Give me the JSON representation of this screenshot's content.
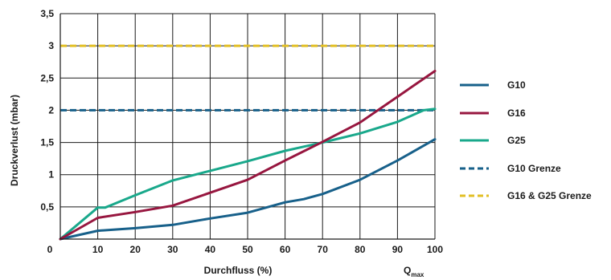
{
  "chart_data": {
    "type": "line",
    "xlabel": "Durchfluss (%)",
    "ylabel": "Druckverlust (mbar)",
    "x_extra_label": {
      "main": "Q",
      "sub": "max"
    },
    "xlim": [
      0,
      100
    ],
    "ylim": [
      0,
      3.5
    ],
    "x_ticks": [
      0,
      10,
      20,
      30,
      40,
      50,
      60,
      70,
      80,
      90,
      100
    ],
    "x_tick_labels": [
      "0",
      "10",
      "20",
      "30",
      "40",
      "50",
      "60",
      "70",
      "80",
      "90",
      "100"
    ],
    "y_ticks": [
      0.5,
      1,
      1.5,
      2,
      2.5,
      3,
      3.5
    ],
    "y_tick_labels": [
      "0,5",
      "1",
      "1,5",
      "2",
      "2,5",
      "3",
      "3,5"
    ],
    "grid": true,
    "legend_position": "right",
    "series": [
      {
        "name": "G10",
        "color": "#17608a",
        "dash": false,
        "x": [
          0,
          10,
          20,
          30,
          40,
          50,
          60,
          65,
          70,
          80,
          90,
          100
        ],
        "y": [
          0,
          0.13,
          0.17,
          0.22,
          0.32,
          0.41,
          0.57,
          0.62,
          0.7,
          0.92,
          1.22,
          1.55
        ]
      },
      {
        "name": "G16",
        "color": "#97163f",
        "dash": false,
        "x": [
          0,
          10,
          20,
          30,
          40,
          50,
          60,
          70,
          80,
          90,
          100
        ],
        "y": [
          0,
          0.33,
          0.42,
          0.52,
          0.72,
          0.92,
          1.22,
          1.51,
          1.81,
          2.21,
          2.61
        ]
      },
      {
        "name": "G25",
        "color": "#19a88b",
        "dash": false,
        "x": [
          0,
          10,
          12,
          20,
          30,
          40,
          50,
          60,
          70,
          80,
          90,
          97,
          100
        ],
        "y": [
          0,
          0.49,
          0.49,
          0.68,
          0.91,
          1.06,
          1.21,
          1.37,
          1.5,
          1.64,
          1.82,
          2.0,
          2.02
        ]
      },
      {
        "name": "G10 Grenze",
        "color": "#17608a",
        "dash": true,
        "x": [
          0,
          100
        ],
        "y": [
          2,
          2
        ]
      },
      {
        "name": "G16 & G25 Grenze",
        "color": "#e2bf24",
        "dash": true,
        "x": [
          0,
          100
        ],
        "y": [
          3,
          3
        ]
      }
    ]
  }
}
